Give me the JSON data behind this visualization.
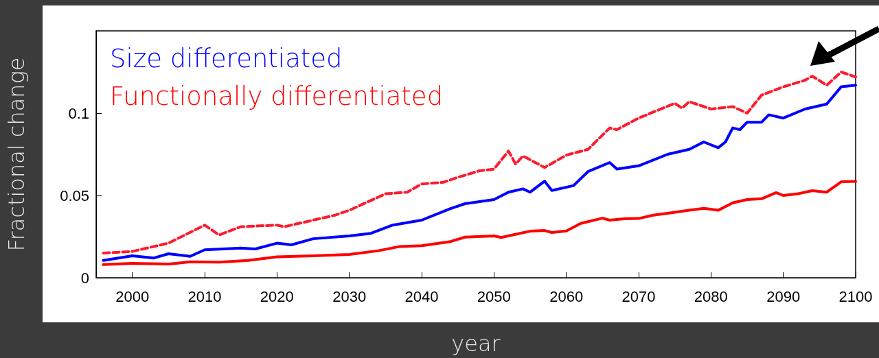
{
  "chart_data": {
    "type": "line",
    "xlabel": "year",
    "ylabel": "Fractional change",
    "xlim": [
      1995,
      2100
    ],
    "xticks": [
      2000,
      2010,
      2020,
      2030,
      2040,
      2050,
      2060,
      2070,
      2080,
      2090,
      2100
    ],
    "ylim": [
      0,
      0.15
    ],
    "yticks": [
      0,
      0.05,
      0.1
    ],
    "grid": false,
    "legend": "top left",
    "marker": "none",
    "series": [
      {
        "color": "#ff1a2e",
        "line_style": "dashed",
        "x": [
          1996,
          2000,
          2005,
          2010,
          2012,
          2015,
          2020,
          2021,
          2025,
          2028,
          2030,
          2035,
          2038,
          2040,
          2043,
          2045,
          2048,
          2050,
          2052,
          2053,
          2054,
          2057,
          2060,
          2063,
          2066,
          2067,
          2070,
          2075,
          2076,
          2077,
          2080,
          2083,
          2085,
          2087,
          2090,
          2093,
          2094,
          2096,
          2098,
          2100
        ],
        "values": [
          0.015,
          0.016,
          0.021,
          0.032,
          0.026,
          0.031,
          0.032,
          0.031,
          0.035,
          0.038,
          0.041,
          0.051,
          0.052,
          0.057,
          0.058,
          0.061,
          0.065,
          0.066,
          0.077,
          0.069,
          0.074,
          0.067,
          0.0745,
          0.078,
          0.091,
          0.09,
          0.097,
          0.106,
          0.103,
          0.107,
          0.1025,
          0.104,
          0.1,
          0.111,
          0.116,
          0.12,
          0.1225,
          0.117,
          0.125,
          0.122
        ]
      },
      {
        "name": "Size differentiated",
        "color": "#0000ff",
        "line_style": "solid",
        "x": [
          1996,
          2000,
          2003,
          2005,
          2008,
          2010,
          2015,
          2017,
          2020,
          2022,
          2025,
          2030,
          2033,
          2036,
          2040,
          2044,
          2046,
          2050,
          2052,
          2054,
          2055,
          2057,
          2058,
          2061,
          2063,
          2066,
          2067,
          2070,
          2074,
          2077,
          2079,
          2081,
          2082,
          2083,
          2084,
          2085,
          2087,
          2088,
          2090,
          2093,
          2096,
          2098,
          2100
        ],
        "values": [
          0.0105,
          0.0133,
          0.012,
          0.0146,
          0.013,
          0.017,
          0.018,
          0.0175,
          0.021,
          0.02,
          0.0237,
          0.0254,
          0.027,
          0.032,
          0.035,
          0.042,
          0.045,
          0.0475,
          0.052,
          0.054,
          0.052,
          0.0587,
          0.053,
          0.056,
          0.0645,
          0.07,
          0.066,
          0.068,
          0.075,
          0.078,
          0.0825,
          0.079,
          0.0825,
          0.091,
          0.09,
          0.0945,
          0.0945,
          0.099,
          0.097,
          0.1025,
          0.1055,
          0.116,
          0.117
        ]
      },
      {
        "name": "Functionally differentiated",
        "color": "#ff0000",
        "line_style": "solid",
        "x": [
          1996,
          2000,
          2005,
          2008,
          2012,
          2016,
          2020,
          2025,
          2030,
          2034,
          2037,
          2040,
          2044,
          2046,
          2050,
          2051,
          2055,
          2057,
          2058,
          2060,
          2062,
          2065,
          2066,
          2068,
          2070,
          2072,
          2074,
          2077,
          2079,
          2081,
          2083,
          2085,
          2087,
          2089,
          2090,
          2092,
          2094,
          2096,
          2098,
          2100
        ],
        "values": [
          0.008,
          0.0088,
          0.0083,
          0.0097,
          0.0095,
          0.0105,
          0.0127,
          0.0133,
          0.0142,
          0.0164,
          0.019,
          0.0195,
          0.022,
          0.0247,
          0.0254,
          0.0245,
          0.0283,
          0.0287,
          0.0275,
          0.0284,
          0.033,
          0.0362,
          0.035,
          0.0358,
          0.036,
          0.038,
          0.0392,
          0.041,
          0.0422,
          0.041,
          0.0455,
          0.0475,
          0.048,
          0.0517,
          0.05,
          0.051,
          0.0529,
          0.052,
          0.0583,
          0.0585
        ]
      }
    ]
  }
}
